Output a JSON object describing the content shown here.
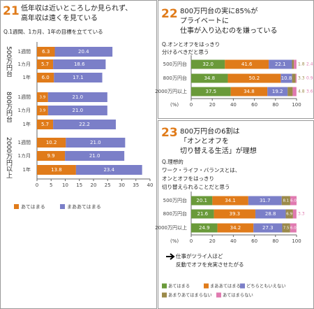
{
  "chart_data": [
    {
      "type": "bar",
      "number": "21",
      "title": [
        "低年収は近いところしか見られず、",
        "高年収は遠くを見ている"
      ],
      "subtitle": [
        "Q.1週間、1カ月、1年の目標を立てている"
      ],
      "groups": [
        "500万円台",
        "800万円台",
        "2000万円以上"
      ],
      "categories": [
        "1週間",
        "1カ月",
        "1年",
        "1週間",
        "1カ月",
        "1年",
        "1週間",
        "1カ月",
        "1年"
      ],
      "series": [
        {
          "name": "あてはまる",
          "color": "#e07b1a",
          "values": [
            6.3,
            5.7,
            6.0,
            3.9,
            3.9,
            5.7,
            10.2,
            9.9,
            13.8
          ],
          "value_labels": [
            "6.3",
            "5.7",
            "6.0",
            "3.9",
            "3.9",
            "5.7",
            "10.2",
            "9.9",
            "13.8"
          ]
        },
        {
          "name": "まああてはまる",
          "color": "#7b7fc8",
          "values": [
            20.4,
            18.6,
            17.1,
            21.0,
            21.0,
            22.2,
            21.0,
            21.0,
            23.4
          ],
          "value_labels": [
            "20.4",
            "18.6",
            "17.1",
            "21.0",
            "21.0",
            "22.2",
            "21.0",
            "21.0",
            "23.4"
          ]
        }
      ],
      "xlim": [
        0,
        40
      ],
      "xticks": [
        0,
        5,
        10,
        15,
        20,
        25,
        30,
        35,
        40
      ]
    },
    {
      "type": "bar",
      "number": "22",
      "title": [
        "800万円台の実に85%が",
        "プライベートに",
        "仕事が入り込むのを嫌っている"
      ],
      "subtitle": [
        "Q.オンとオフをはっきり",
        "分けるべきだと思う"
      ],
      "categories": [
        "500万円台",
        "800万円台",
        "2000万円以上"
      ],
      "series": [
        {
          "name": "あてはまる",
          "color": "#6a9a3a",
          "values": [
            32.0,
            34.8,
            37.5
          ],
          "value_labels": [
            "32.0",
            "34.8",
            "37.5"
          ]
        },
        {
          "name": "まああてはまる",
          "color": "#e07b1a",
          "values": [
            41.6,
            50.2,
            34.8
          ],
          "value_labels": [
            "41.6",
            "50.2",
            "34.8"
          ]
        },
        {
          "name": "どちらともいえない",
          "color": "#7b7fc8",
          "values": [
            22.1,
            10.8,
            19.2
          ],
          "value_labels": [
            "22.1",
            "10.8",
            "19.2"
          ]
        },
        {
          "name": "あまりあてはまらない",
          "color": "#9b8a4a",
          "values": [
            1.8,
            3.3,
            4.8
          ],
          "value_labels": [
            "1.8",
            "3.3",
            "4.8"
          ]
        },
        {
          "name": "あてはまらない",
          "color": "#e07ab0",
          "values": [
            2.4,
            0.9,
            3.6
          ],
          "value_labels": [
            "2.4",
            "0.9",
            "3.6"
          ]
        }
      ],
      "xlabel": "(%)",
      "xlim": [
        0,
        100
      ],
      "xticks": [
        0,
        20,
        40,
        60,
        80,
        100
      ]
    },
    {
      "type": "bar",
      "number": "23",
      "title": [
        "800万円台の6割は",
        "「オンとオフを",
        "切り替える生活」が理想"
      ],
      "subtitle": [
        "Q.理想的",
        "ワーク・ライフ・バランスとは、",
        "オンとオフをはっきり",
        "切り替えられることだと思う"
      ],
      "categories": [
        "500万円台",
        "800万円台",
        "2000万円以上"
      ],
      "series": [
        {
          "name": "あてはまる",
          "color": "#6a9a3a",
          "values": [
            20.1,
            21.6,
            24.9
          ],
          "value_labels": [
            "20.1",
            "21.6",
            "24.9"
          ]
        },
        {
          "name": "まああてはまる",
          "color": "#e07b1a",
          "values": [
            34.1,
            39.3,
            34.2
          ],
          "value_labels": [
            "34.1",
            "39.3",
            "34.2"
          ]
        },
        {
          "name": "どちらともいえない",
          "color": "#7b7fc8",
          "values": [
            31.7,
            28.8,
            27.3
          ],
          "value_labels": [
            "31.7",
            "28.8",
            "27.3"
          ]
        },
        {
          "name": "あまりあてはまらない",
          "color": "#9b8a4a",
          "values": [
            8.1,
            6.9,
            7.5
          ],
          "value_labels": [
            "8.1",
            "6.9",
            "7.5"
          ]
        },
        {
          "name": "あてはまらない",
          "color": "#e07ab0",
          "values": [
            6.0,
            3.3,
            6.0
          ],
          "value_labels": [
            "6.0",
            "3.3",
            "6.0"
          ]
        }
      ],
      "annotation": [
        "仕事がツライ人ほど",
        "反動でオフを充実させたがる"
      ],
      "xlabel": "(%)",
      "xlim": [
        0,
        100
      ],
      "xticks": [
        0,
        20,
        40,
        60,
        80,
        100
      ]
    }
  ]
}
